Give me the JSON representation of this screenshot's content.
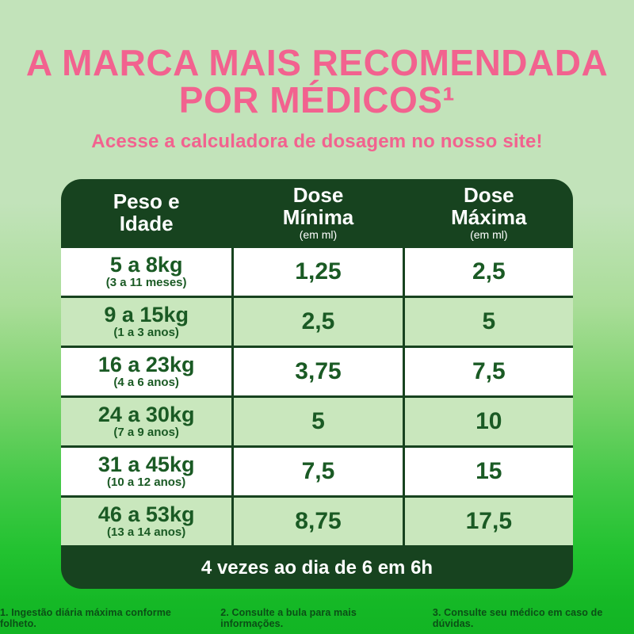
{
  "header": {
    "headline_line1": "A MARCA MAIS RECOMENDADA",
    "headline_line2": "POR MÉDICOS¹",
    "subtitle": "Acesse a calculadora de dosagem no nosso site!"
  },
  "table": {
    "columns": [
      {
        "line1": "Peso e",
        "line2": "Idade",
        "unit": ""
      },
      {
        "line1": "Dose",
        "line2": "Mínima",
        "unit": "(em ml)"
      },
      {
        "line1": "Dose",
        "line2": "Máxima",
        "unit": "(em ml)"
      }
    ],
    "rows": [
      {
        "weight": "5 a 8kg",
        "age": "(3 a 11 meses)",
        "min": "1,25",
        "max": "2,5"
      },
      {
        "weight": "9 a 15kg",
        "age": "(1 a 3 anos)",
        "min": "2,5",
        "max": "5"
      },
      {
        "weight": "16 a 23kg",
        "age": "(4 a 6 anos)",
        "min": "3,75",
        "max": "7,5"
      },
      {
        "weight": "24 a 30kg",
        "age": "(7 a 9 anos)",
        "min": "5",
        "max": "10"
      },
      {
        "weight": "31 a 45kg",
        "age": "(10 a 12 anos)",
        "min": "7,5",
        "max": "15"
      },
      {
        "weight": "46 a 53kg",
        "age": "(13 a 14 anos)",
        "min": "8,75",
        "max": "17,5"
      }
    ],
    "footer": "4 vezes ao dia de 6 em 6h"
  },
  "footnotes": [
    "1. Ingestão diária máxima conforme folheto.",
    "2. Consulte a bula para mais informações.",
    "3. Consulte seu médico em caso de dúvidas."
  ],
  "colors": {
    "background_top": "#c2e3ba",
    "background_bottom": "#12b524",
    "pink": "#f2628f",
    "dark_green": "#17431f",
    "row_alt_green": "#c9e7bd",
    "text_green": "#1a5a24",
    "footnote_green": "#0b4e16",
    "header_text": "#ffffff"
  }
}
